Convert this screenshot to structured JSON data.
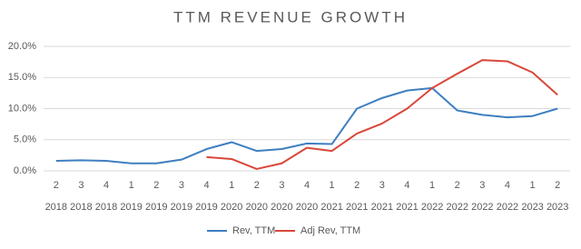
{
  "chart_data": {
    "type": "line",
    "title": "TTM REVENUE GROWTH",
    "categories": [
      [
        "2",
        "2018"
      ],
      [
        "3",
        "2018"
      ],
      [
        "4",
        "2018"
      ],
      [
        "1",
        "2019"
      ],
      [
        "2",
        "2019"
      ],
      [
        "3",
        "2019"
      ],
      [
        "4",
        "2019"
      ],
      [
        "1",
        "2020"
      ],
      [
        "2",
        "2020"
      ],
      [
        "3",
        "2020"
      ],
      [
        "4",
        "2020"
      ],
      [
        "1",
        "2021"
      ],
      [
        "2",
        "2021"
      ],
      [
        "3",
        "2021"
      ],
      [
        "4",
        "2021"
      ],
      [
        "1",
        "2022"
      ],
      [
        "2",
        "2022"
      ],
      [
        "3",
        "2022"
      ],
      [
        "4",
        "2022"
      ],
      [
        "1",
        "2023"
      ],
      [
        "2",
        "2023"
      ]
    ],
    "series": [
      {
        "name": "Rev, TTM",
        "color": "#3f7fc0",
        "values": [
          1.6,
          1.7,
          1.6,
          1.2,
          1.2,
          1.8,
          3.5,
          4.6,
          3.2,
          3.5,
          4.4,
          4.3,
          10.0,
          11.7,
          12.9,
          13.3,
          9.7,
          9.0,
          8.6,
          8.8,
          10.0
        ]
      },
      {
        "name": "Adj Rev, TTM",
        "color": "#d9473a",
        "values": [
          null,
          null,
          null,
          null,
          null,
          null,
          2.2,
          1.9,
          0.3,
          1.2,
          3.7,
          3.2,
          6.0,
          7.6,
          10.0,
          13.3,
          15.6,
          17.8,
          17.6,
          15.8,
          12.2
        ]
      }
    ],
    "ylim": [
      0,
      20
    ],
    "yticks": [
      {
        "value": 0,
        "label": "0.0%"
      },
      {
        "value": 5,
        "label": "5.0%"
      },
      {
        "value": 10,
        "label": "10.0%"
      },
      {
        "value": 15,
        "label": "15.0%"
      },
      {
        "value": 20,
        "label": "20.0%"
      }
    ],
    "grid": true
  }
}
